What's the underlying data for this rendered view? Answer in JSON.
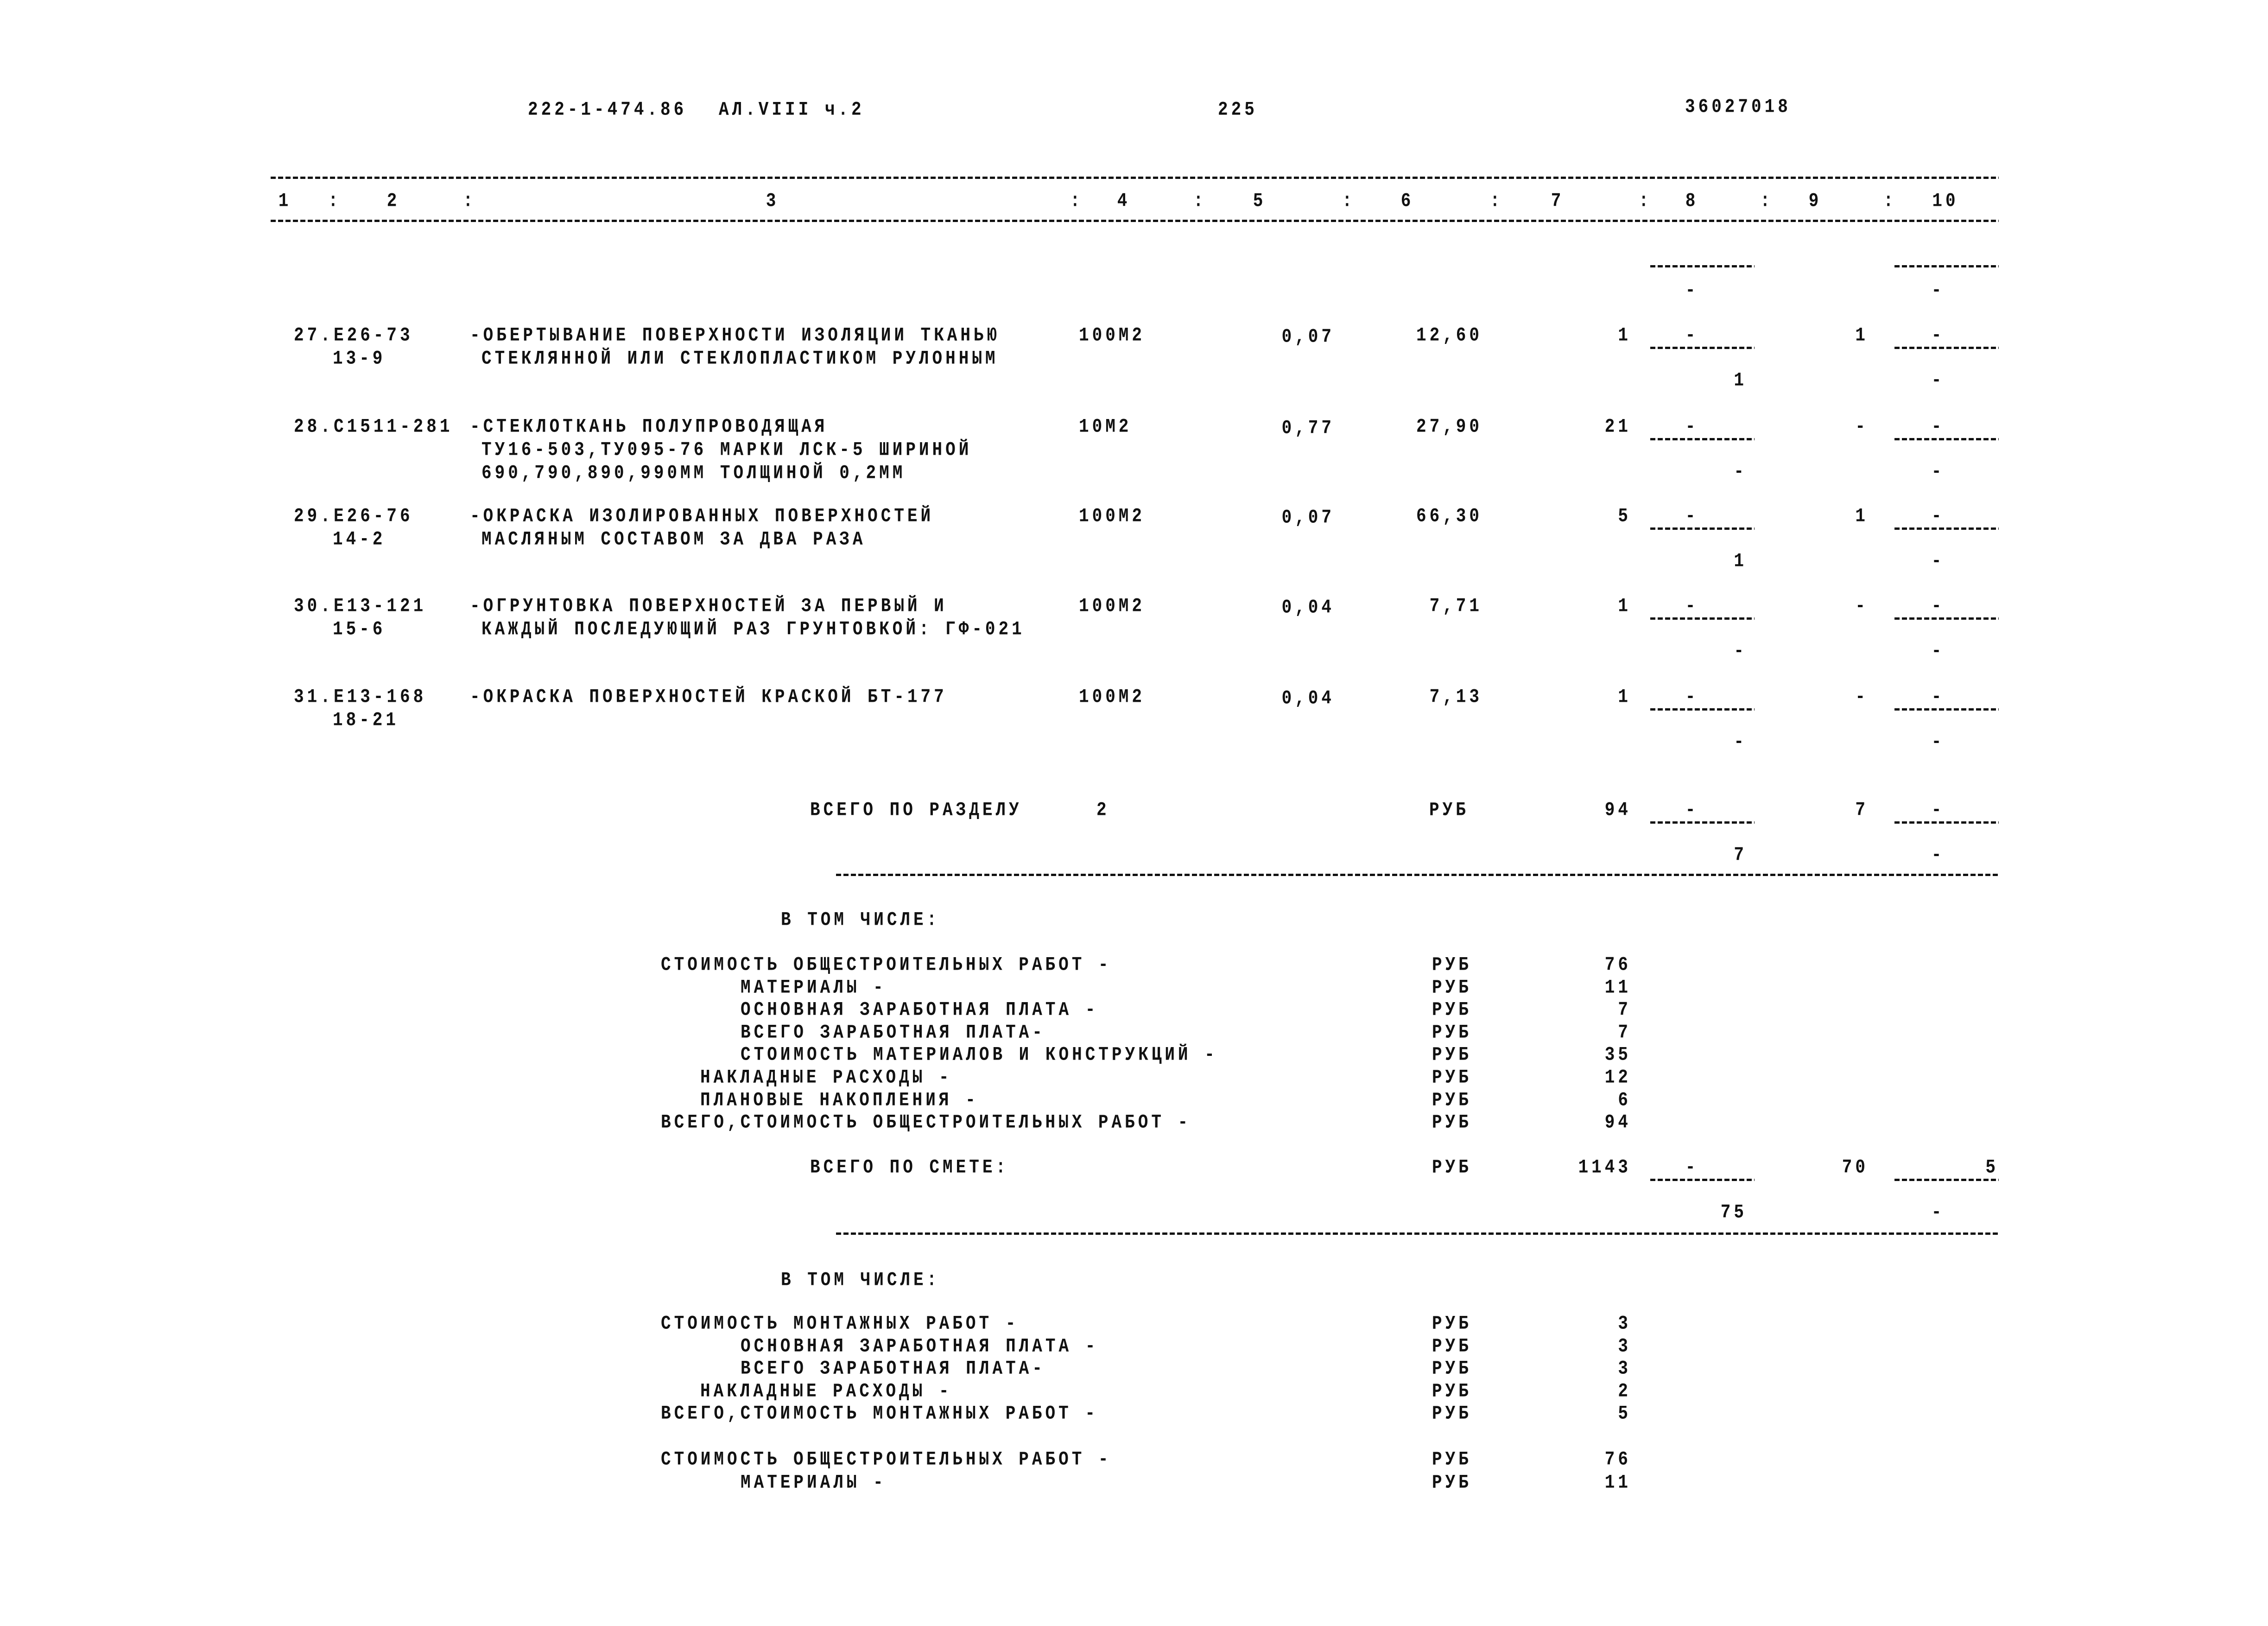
{
  "header": {
    "doc_code": "222-1-474.86",
    "album": "АЛ.VIII ч.2",
    "page_number": "225",
    "doc_number": "36027018"
  },
  "column_headers": [
    "1",
    "2",
    "3",
    "4",
    "5",
    "6",
    "7",
    "8",
    "9",
    "10"
  ],
  "carryover": {
    "col8": "-",
    "col10": "-"
  },
  "items": [
    {
      "no": "27.",
      "code": "Е26-73",
      "code2": "13-9",
      "desc": [
        "-ОБЕРТЫВАНИЕ ПОВЕРХНОСТИ ИЗОЛЯЦИИ ТКАНЬЮ",
        "СТЕКЛЯННОЙ ИЛИ СТЕКЛОПЛАСТИКОМ РУЛОННЫМ"
      ],
      "unit": "100М2",
      "qty": "0,07",
      "price": "12,60",
      "c7": "1",
      "c8_top": "-",
      "c8_bottom": "1",
      "c9": "1",
      "c10_top": "-",
      "c10_bottom": "-"
    },
    {
      "no": "28.",
      "code": "С1511-281",
      "code2": "",
      "desc": [
        "-СТЕКЛОТКАНЬ ПОЛУПРОВОДЯЩАЯ",
        "ТУ16-503,ТУ095-76 МАРКИ ЛСК-5 ШИРИНОЙ",
        "690,790,890,990ММ ТОЛЩИНОЙ 0,2ММ"
      ],
      "unit": "10М2",
      "qty": "0,77",
      "price": "27,90",
      "c7": "21",
      "c8_top": "-",
      "c8_bottom": "-",
      "c9": "-",
      "c10_top": "-",
      "c10_bottom": "-"
    },
    {
      "no": "29.",
      "code": "Е26-76",
      "code2": "14-2",
      "desc": [
        "-ОКРАСКА ИЗОЛИРОВАННЫХ ПОВЕРХНОСТЕЙ",
        "МАСЛЯНЫМ СОСТАВОМ ЗА ДВА РАЗА"
      ],
      "unit": "100М2",
      "qty": "0,07",
      "price": "66,30",
      "c7": "5",
      "c8_top": "-",
      "c8_bottom": "1",
      "c9": "1",
      "c10_top": "-",
      "c10_bottom": "-"
    },
    {
      "no": "30.",
      "code": "Е13-121",
      "code2": "15-6",
      "desc": [
        "-ОГРУНТОВКА ПОВЕРХНОСТЕЙ ЗА ПЕРВЫЙ И",
        "КАЖДЫЙ ПОСЛЕДУЮЩИЙ РАЗ ГРУНТОВКОЙ: ГФ-021"
      ],
      "unit": "100М2",
      "qty": "0,04",
      "price": "7,71",
      "c7": "1",
      "c8_top": "-",
      "c8_bottom": "-",
      "c9": "-",
      "c10_top": "-",
      "c10_bottom": "-"
    },
    {
      "no": "31.",
      "code": "Е13-168",
      "code2": "18-21",
      "desc": [
        "-ОКРАСКА ПОВЕРХНОСТЕЙ КРАСКОЙ БТ-177"
      ],
      "unit": "100М2",
      "qty": "0,04",
      "price": "7,13",
      "c7": "1",
      "c8_top": "-",
      "c8_bottom": "-",
      "c9": "-",
      "c10_top": "-",
      "c10_bottom": "-"
    }
  ],
  "section_total": {
    "label": "ВСЕГО ПО РАЗДЕЛУ",
    "section": "2",
    "unit": "РУБ",
    "c7": "94",
    "c8_top": "-",
    "c8_bottom": "7",
    "c9": "7",
    "c10_top": "-",
    "c10_bottom": "-"
  },
  "breakdown1": {
    "heading": "В ТОМ ЧИСЛЕ:",
    "lines": [
      {
        "label": "СТОИМОСТЬ ОБЩЕСТРОИТЕЛЬНЫХ РАБОТ -",
        "indent": 0,
        "unit": "РУБ",
        "value": "76"
      },
      {
        "label": "МАТЕРИАЛЫ -",
        "indent": 2,
        "unit": "РУБ",
        "value": "11"
      },
      {
        "label": "ОСНОВНАЯ ЗАРАБОТНАЯ ПЛАТА -",
        "indent": 2,
        "unit": "РУБ",
        "value": "7"
      },
      {
        "label": "ВСЕГО ЗАРАБОТНАЯ ПЛАТА-",
        "indent": 2,
        "unit": "РУБ",
        "value": "7"
      },
      {
        "label": "СТОИМОСТЬ МАТЕРИАЛОВ И КОНСТРУКЦИЙ -",
        "indent": 2,
        "unit": "РУБ",
        "value": "35"
      },
      {
        "label": "НАКЛАДНЫЕ РАСХОДЫ -",
        "indent": 1,
        "unit": "РУБ",
        "value": "12"
      },
      {
        "label": "ПЛАНОВЫЕ НАКОПЛЕНИЯ -",
        "indent": 1,
        "unit": "РУБ",
        "value": "6"
      },
      {
        "label": "ВСЕГО,СТОИМОСТЬ ОБЩЕСТРОИТЕЛЬНЫХ РАБОТ -",
        "indent": 0,
        "unit": "РУБ",
        "value": "94"
      }
    ]
  },
  "estimate_total": {
    "label": "ВСЕГО ПО СМЕТЕ:",
    "unit": "РУБ",
    "c7": "1143",
    "c8_top": "-",
    "c8_bottom": "75",
    "c9": "70",
    "c10_top": "5",
    "c10_bottom": "-"
  },
  "breakdown2": {
    "heading": "В ТОМ ЧИСЛЕ:",
    "lines": [
      {
        "label": "СТОИМОСТЬ МОНТАЖНЫХ РАБОТ -",
        "indent": 0,
        "unit": "РУБ",
        "value": "3"
      },
      {
        "label": "ОСНОВНАЯ ЗАРАБОТНАЯ ПЛАТА -",
        "indent": 2,
        "unit": "РУБ",
        "value": "3"
      },
      {
        "label": "ВСЕГО ЗАРАБОТНАЯ ПЛАТА-",
        "indent": 2,
        "unit": "РУБ",
        "value": "3"
      },
      {
        "label": "НАКЛАДНЫЕ РАСХОДЫ -",
        "indent": 1,
        "unit": "РУБ",
        "value": "2"
      },
      {
        "label": "ВСЕГО,СТОИМОСТЬ МОНТАЖНЫХ РАБОТ -",
        "indent": 0,
        "unit": "РУБ",
        "value": "5"
      }
    ],
    "extra_lines": [
      {
        "label": "СТОИМОСТЬ ОБЩЕСТРОИТЕЛЬНЫХ РАБОТ -",
        "indent": 0,
        "unit": "РУБ",
        "value": "76"
      },
      {
        "label": "МАТЕРИАЛЫ -",
        "indent": 2,
        "unit": "РУБ",
        "value": "11"
      }
    ]
  }
}
